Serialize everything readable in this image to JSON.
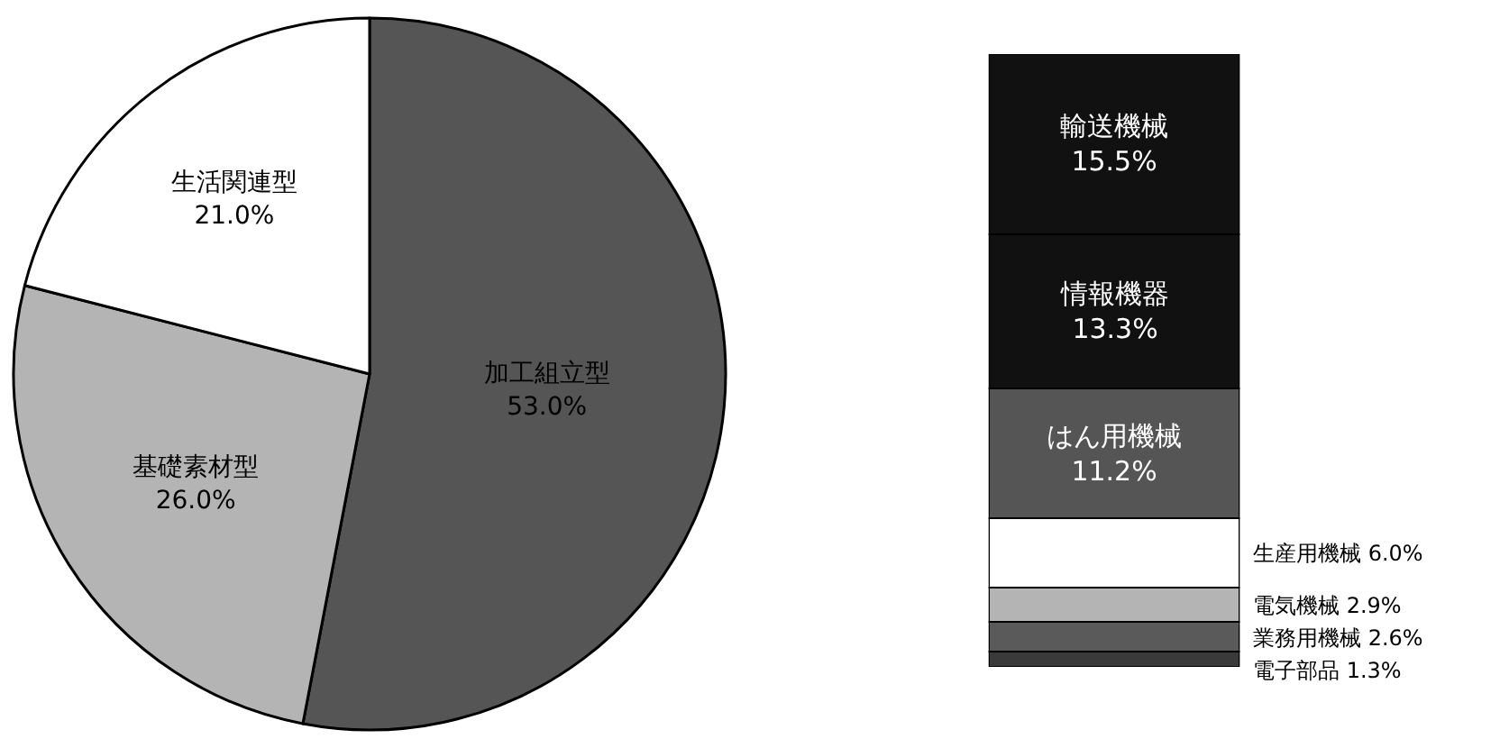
{
  "chart_data": [
    {
      "type": "pie",
      "categories": [
        "加工組立型",
        "基礎素材型",
        "生活関連型"
      ],
      "values": [
        53.0,
        26.0,
        21.0
      ],
      "value_labels": [
        "53.0%",
        "26.0%",
        "21.0%"
      ],
      "colors": [
        "#555555",
        "#b4b4b4",
        "#ffffff"
      ],
      "legend": false
    },
    {
      "type": "bar",
      "stacked": true,
      "categories": [
        null
      ],
      "legend": false,
      "series": [
        {
          "name": "電子部品",
          "color": "#3a3a3a",
          "values": [
            1.3
          ],
          "value_labels": [
            "1.3%"
          ]
        },
        {
          "name": "業務用機械",
          "color": "#5a5a5a",
          "values": [
            2.6
          ],
          "value_labels": [
            "2.6%"
          ]
        },
        {
          "name": "電気機械",
          "color": "#b4b4b4",
          "values": [
            2.9
          ],
          "value_labels": [
            "2.9%"
          ]
        },
        {
          "name": "生産用機械",
          "color": "#ffffff",
          "values": [
            6.0
          ],
          "value_labels": [
            "6.0%"
          ]
        },
        {
          "name": "はん用機械",
          "color": "#555555",
          "values": [
            11.2
          ],
          "value_labels": [
            "11.2%"
          ]
        },
        {
          "name": "情報機器",
          "color": "#111111",
          "values": [
            13.3
          ],
          "value_labels": [
            "13.3%"
          ]
        },
        {
          "name": "輸送機械",
          "color": "#111111",
          "values": [
            15.5
          ],
          "value_labels": [
            "15.5%"
          ]
        }
      ]
    }
  ]
}
